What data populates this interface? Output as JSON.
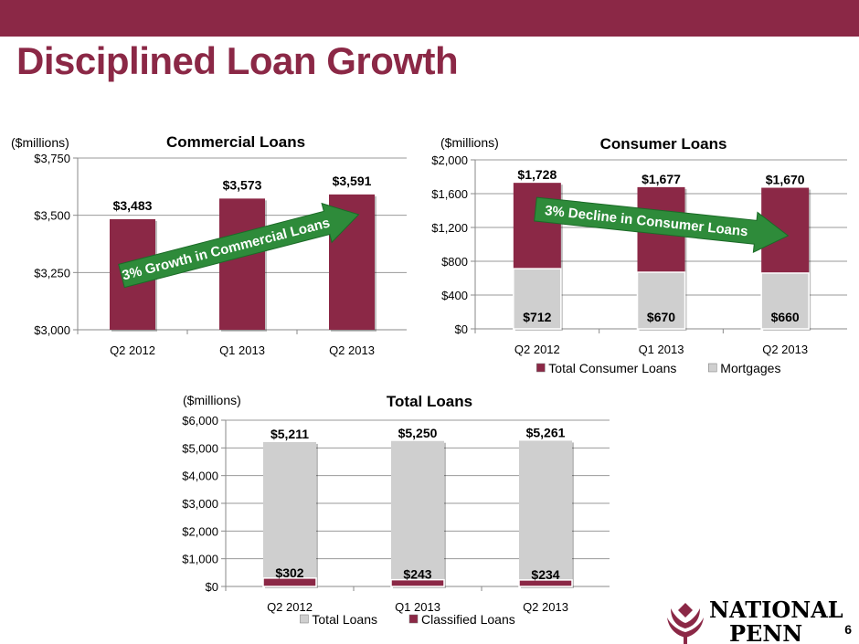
{
  "slide": {
    "title": "Disciplined Loan Growth",
    "page_number": "6"
  },
  "colors": {
    "maroon": "#8b2846",
    "gray": "#cfcfcf",
    "arrow": "#2e8b3a"
  },
  "logo": {
    "line1": "NATIONAL",
    "line2": "PENN"
  },
  "chart_data": [
    {
      "id": "commercial",
      "type": "bar",
      "title": "Commercial Loans",
      "units": "($millions)",
      "categories": [
        "Q2 2012",
        "Q1 2013",
        "Q2 2013"
      ],
      "series": [
        {
          "values": [
            3483,
            3573,
            3591
          ],
          "labels": [
            "$3,483",
            "$3,573",
            "$3,591"
          ],
          "color": "#8b2846"
        }
      ],
      "ylim": [
        3000,
        3750
      ],
      "yticks": [
        3000,
        3250,
        3500,
        3750
      ],
      "ytick_labels": [
        "$3,000",
        "$3,250",
        "$3,500",
        "$3,750"
      ],
      "grid": true,
      "annotation": "3% Growth in Commercial Loans"
    },
    {
      "id": "consumer",
      "type": "bar",
      "title": "Consumer Loans",
      "units": "($millions)",
      "categories": [
        "Q2 2012",
        "Q1 2013",
        "Q2 2013"
      ],
      "series": [
        {
          "name": "Total Consumer Loans",
          "values": [
            1728,
            1677,
            1670
          ],
          "labels": [
            "$1,728",
            "$1,677",
            "$1,670"
          ],
          "color": "#8b2846"
        },
        {
          "name": "Mortgages",
          "values": [
            712,
            670,
            660
          ],
          "labels": [
            "$712",
            "$670",
            "$660"
          ],
          "color": "#cfcfcf"
        }
      ],
      "ylim": [
        0,
        2000
      ],
      "yticks": [
        0,
        400,
        800,
        1200,
        1600,
        2000
      ],
      "ytick_labels": [
        "$0",
        "$400",
        "$800",
        "$1,200",
        "$1,600",
        "$2,000"
      ],
      "grid": true,
      "legend": "bottom",
      "annotation": "3% Decline in Consumer Loans"
    },
    {
      "id": "total",
      "type": "bar",
      "title": "Total Loans",
      "units": "($millions)",
      "categories": [
        "Q2 2012",
        "Q1 2013",
        "Q2 2013"
      ],
      "series": [
        {
          "name": "Total Loans",
          "values": [
            5211,
            5250,
            5261
          ],
          "labels": [
            "$5,211",
            "$5,250",
            "$5,261"
          ],
          "color": "#cfcfcf"
        },
        {
          "name": "Classified Loans",
          "values": [
            302,
            243,
            234
          ],
          "labels": [
            "$302",
            "$243",
            "$234"
          ],
          "color": "#8b2846"
        }
      ],
      "ylim": [
        0,
        6000
      ],
      "yticks": [
        0,
        1000,
        2000,
        3000,
        4000,
        5000,
        6000
      ],
      "ytick_labels": [
        "$0",
        "$1,000",
        "$2,000",
        "$3,000",
        "$4,000",
        "$5,000",
        "$6,000"
      ],
      "grid": true,
      "legend": "bottom"
    }
  ]
}
